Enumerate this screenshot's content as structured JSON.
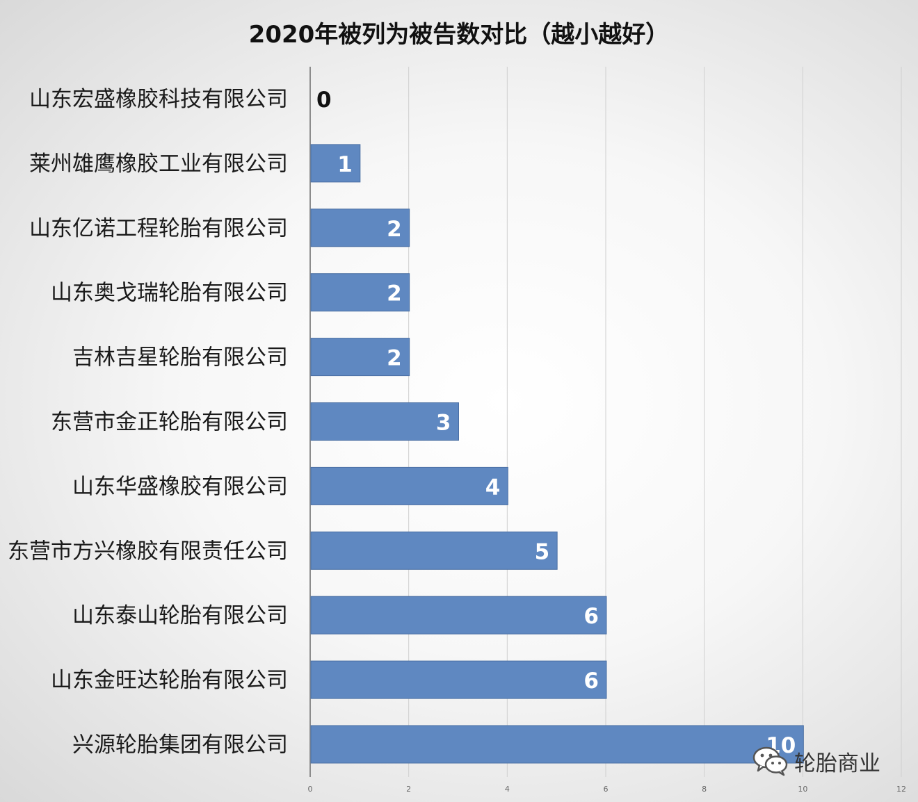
{
  "chart_data": {
    "type": "bar",
    "orientation": "horizontal",
    "title": "2020年被列为被告数对比（越小越好）",
    "categories": [
      "山东宏盛橡胶科技有限公司",
      "莱州雄鹰橡胶工业有限公司",
      "山东亿诺工程轮胎有限公司",
      "山东奥戈瑞轮胎有限公司",
      "吉林吉星轮胎有限公司",
      "东营市金正轮胎有限公司",
      "山东华盛橡胶有限公司",
      "东营市方兴橡胶有限责任公司",
      "山东泰山轮胎有限公司",
      "山东金旺达轮胎有限公司",
      "兴源轮胎集团有限公司"
    ],
    "values": [
      0,
      1,
      2,
      2,
      2,
      3,
      4,
      5,
      6,
      6,
      10
    ],
    "xlim": [
      0,
      12
    ],
    "xticks": [
      0,
      2,
      4,
      6,
      8,
      10,
      12
    ],
    "grid": true,
    "bar_color": "#5f88c1",
    "data_labels": true
  },
  "watermark": {
    "icon": "wechat-icon",
    "text": "轮胎商业"
  }
}
